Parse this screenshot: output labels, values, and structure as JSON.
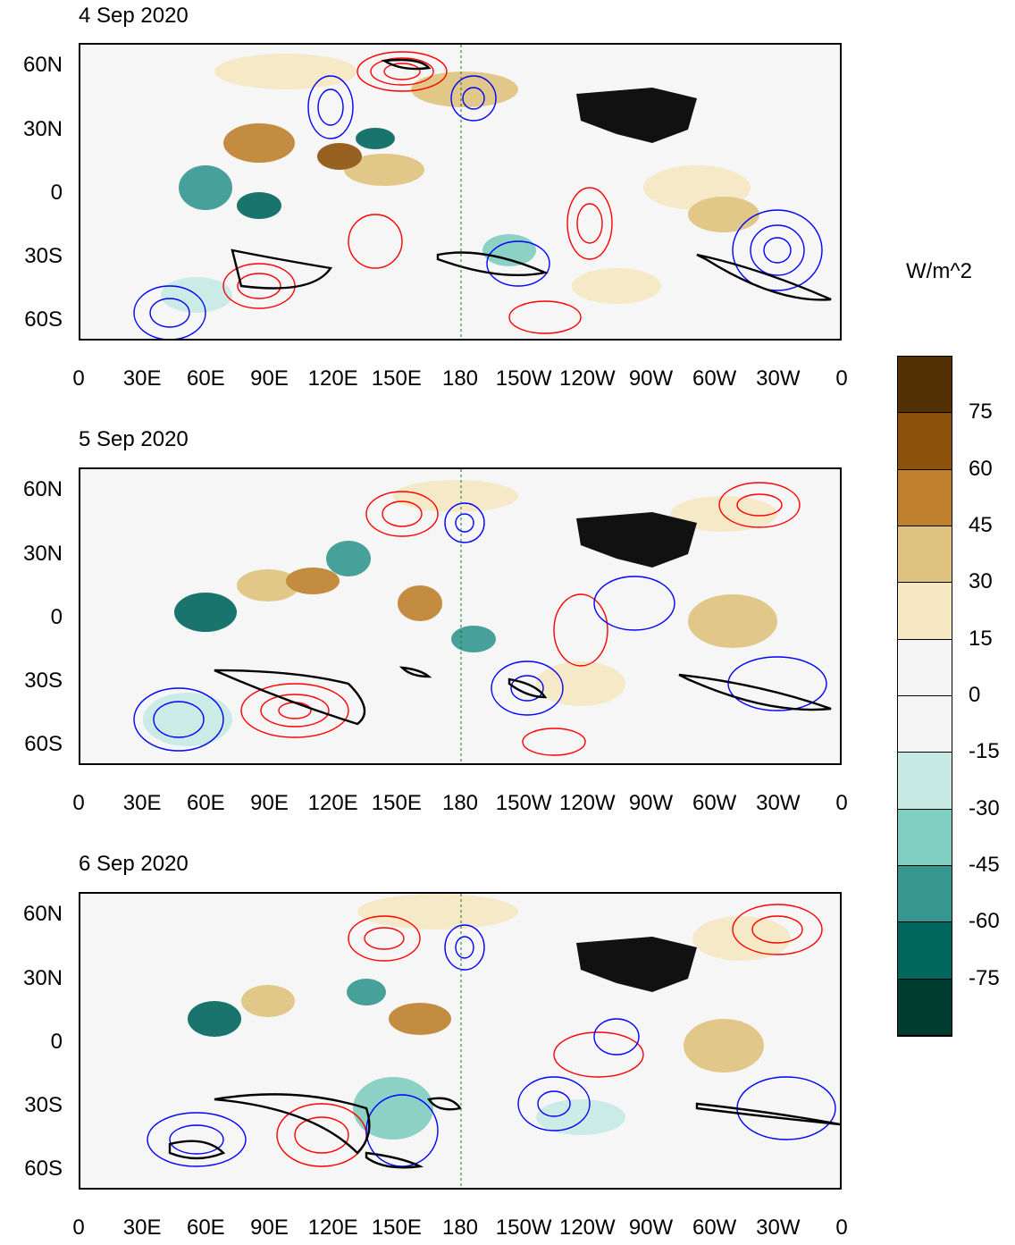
{
  "panels": [
    {
      "title": "4 Sep 2020"
    },
    {
      "title": "5 Sep 2020"
    },
    {
      "title": "6 Sep 2020"
    }
  ],
  "lat_labels": [
    "60N",
    "30N",
    "0",
    "30S",
    "60S"
  ],
  "lon_labels": [
    "0",
    "30E",
    "60E",
    "90E",
    "120E",
    "150E",
    "180",
    "150W",
    "120W",
    "90W",
    "60W",
    "30W",
    "0"
  ],
  "colorbar": {
    "title": "W/m^2",
    "labels": [
      "75",
      "60",
      "45",
      "30",
      "15",
      "0",
      "-15",
      "-30",
      "-45",
      "-60",
      "-75"
    ],
    "colors": [
      "#543005",
      "#8c510a",
      "#bf812d",
      "#dfc27d",
      "#f6e8c3",
      "#f5f5f5",
      "#f5f5f5",
      "#c7eae5",
      "#80cdc1",
      "#35978f",
      "#01665e",
      "#003c30"
    ]
  },
  "colors": {
    "positive_contour": "#ff0000",
    "negative_contour": "#0000ff",
    "highlight_contour": "#000000",
    "coastline": "#1a7a1a"
  }
}
